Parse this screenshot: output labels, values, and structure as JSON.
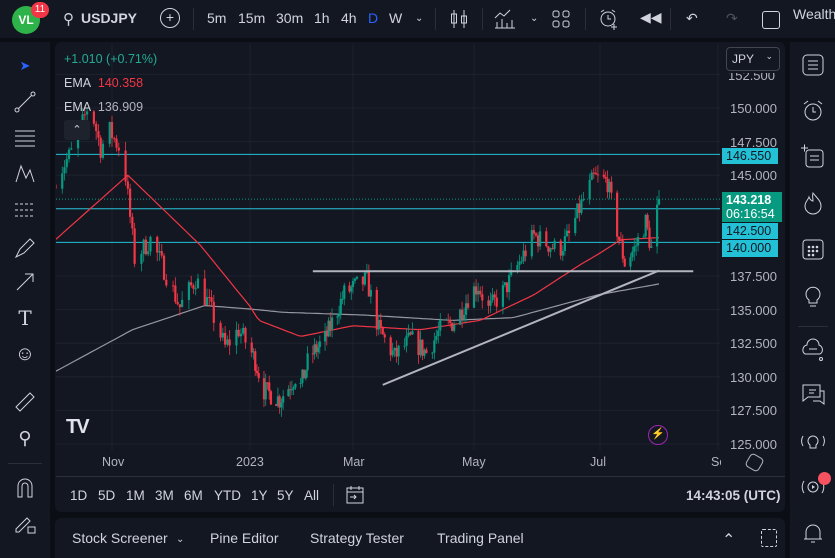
{
  "topbar": {
    "notification_count": "11",
    "symbol": "USDJPY",
    "intervals": [
      "5m",
      "15m",
      "30m",
      "1h",
      "4h",
      "D",
      "W"
    ],
    "active_interval": "D",
    "account_label": "Wealth"
  },
  "legend": {
    "change": "+1.010 (+0.71%)",
    "ema1_label": "EMA",
    "ema1_value": "140.358",
    "ema2_label": "EMA",
    "ema2_value": "136.909"
  },
  "currency_select": "JPY",
  "price_axis": {
    "labels": [
      "152.500",
      "150.000",
      "147.500",
      "145.000",
      "137.500",
      "135.000",
      "132.500",
      "130.000",
      "127.500",
      "125.000"
    ],
    "level_146": "146.550",
    "current_price": "143.218",
    "countdown": "06:16:54",
    "level_142": "142.500",
    "level_140": "140.000"
  },
  "time_axis": {
    "labels": [
      "Nov",
      "2023",
      "Mar",
      "May",
      "Jul",
      "Se"
    ]
  },
  "ranges": [
    "1D",
    "5D",
    "1M",
    "3M",
    "6M",
    "YTD",
    "1Y",
    "5Y",
    "All"
  ],
  "clock": "14:43:05 (UTC)",
  "bottom_tabs": [
    "Stock Screener",
    "Pine Editor",
    "Strategy Tester",
    "Trading Panel"
  ],
  "colors": {
    "up": "#089981",
    "down": "#f23645",
    "ema_fast": "#f23645",
    "ema_slow": "#9598a1",
    "level": "#22c1d6",
    "accent": "#2962ff"
  },
  "chart_data": {
    "type": "candlestick",
    "symbol": "USDJPY",
    "timeframe": "D",
    "ylim": [
      125,
      152.5
    ],
    "close_path": [
      [
        "2022-10-07",
        144.8
      ],
      [
        "2022-10-16",
        147.2
      ],
      [
        "2022-10-22",
        150.5
      ],
      [
        "2022-10-27",
        147.0
      ],
      [
        "2022-10-31",
        148.3
      ],
      [
        "2022-11-06",
        146.5
      ],
      [
        "2022-11-11",
        138.8
      ],
      [
        "2022-11-18",
        140.2
      ],
      [
        "2022-11-24",
        138.0
      ],
      [
        "2022-12-01",
        135.2
      ],
      [
        "2022-12-08",
        137.3
      ],
      [
        "2022-12-14",
        135.3
      ],
      [
        "2022-12-21",
        132.2
      ],
      [
        "2022-12-27",
        133.5
      ],
      [
        "2023-01-04",
        131.2
      ],
      [
        "2023-01-09",
        129.0
      ],
      [
        "2023-01-18",
        128.3
      ],
      [
        "2023-01-27",
        130.0
      ],
      [
        "2023-01-30",
        129.3
      ],
      [
        "2023-02-04",
        131.5
      ],
      [
        "2023-02-13",
        132.8
      ],
      [
        "2023-02-24",
        136.2
      ],
      [
        "2023-03-08",
        137.2
      ],
      [
        "2023-03-14",
        133.5
      ],
      [
        "2023-03-22",
        131.5
      ],
      [
        "2023-03-30",
        132.8
      ],
      [
        "2023-04-07",
        131.8
      ],
      [
        "2023-04-14",
        133.5
      ],
      [
        "2023-04-22",
        134.2
      ],
      [
        "2023-04-29",
        136.2
      ],
      [
        "2023-05-03",
        136.8
      ],
      [
        "2023-05-08",
        135.0
      ],
      [
        "2023-05-16",
        136.5
      ],
      [
        "2023-05-23",
        138.5
      ],
      [
        "2023-05-30",
        140.5
      ],
      [
        "2023-06-11",
        139.4
      ],
      [
        "2023-06-16",
        140.5
      ],
      [
        "2023-06-21",
        142.5
      ],
      [
        "2023-06-28",
        144.8
      ],
      [
        "2023-07-05",
        144.5
      ],
      [
        "2023-07-09",
        141.5
      ],
      [
        "2023-07-14",
        138.5
      ],
      [
        "2023-07-19",
        139.5
      ],
      [
        "2023-07-25",
        141.5
      ],
      [
        "2023-07-28",
        139.5
      ],
      [
        "2023-08-01",
        143.218
      ]
    ],
    "ema_fast_path": [
      [
        "2022-10-07",
        140.2
      ],
      [
        "2022-11-08",
        145.0
      ],
      [
        "2022-12-10",
        139.8
      ],
      [
        "2023-01-06",
        134.2
      ],
      [
        "2023-01-30",
        133.0
      ],
      [
        "2023-03-01",
        133.8
      ],
      [
        "2023-04-04",
        133.5
      ],
      [
        "2023-05-04",
        134.2
      ],
      [
        "2023-05-30",
        136.1
      ],
      [
        "2023-06-21",
        138.3
      ],
      [
        "2023-07-12",
        140.2
      ],
      [
        "2023-08-01",
        140.358
      ]
    ],
    "ema_slow_path": [
      [
        "2022-10-07",
        130.4
      ],
      [
        "2022-11-10",
        133.5
      ],
      [
        "2022-12-12",
        135.3
      ],
      [
        "2023-01-20",
        134.8
      ],
      [
        "2023-03-06",
        134.6
      ],
      [
        "2023-04-20",
        134.2
      ],
      [
        "2023-05-20",
        134.4
      ],
      [
        "2023-06-30",
        136.1
      ],
      [
        "2023-08-01",
        136.909
      ]
    ],
    "horizontal_levels": [
      146.55,
      142.5,
      140.0
    ],
    "support_line": {
      "from": [
        "2023-02-06",
        137.85
      ],
      "to": [
        "2023-08-19",
        137.85
      ]
    },
    "trend_line": {
      "from": [
        "2023-03-16",
        129.4
      ],
      "to": [
        "2023-08-01",
        137.9
      ]
    }
  }
}
